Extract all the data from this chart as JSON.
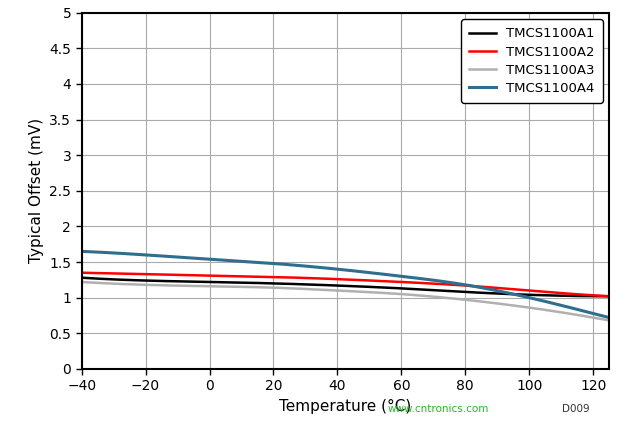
{
  "title": "",
  "xlabel": "Temperature (°C)",
  "ylabel": "Typical Offset (mV)",
  "xlim": [
    -40,
    125
  ],
  "ylim": [
    0,
    5
  ],
  "xticks": [
    -40,
    -20,
    0,
    20,
    40,
    60,
    80,
    100,
    120
  ],
  "ytick_values": [
    0,
    0.5,
    1.0,
    1.5,
    2.0,
    2.5,
    3.0,
    3.5,
    4.0,
    4.5,
    5.0
  ],
  "ytick_labels": [
    "0",
    "0.5",
    "1",
    "1.5",
    "2",
    "2.5",
    "3",
    "3.5",
    "4",
    "4.5",
    "5"
  ],
  "series": [
    {
      "label": "TMCS1100A1",
      "color": "#000000",
      "linewidth": 1.8,
      "x": [
        -40,
        -20,
        0,
        20,
        40,
        60,
        80,
        100,
        125
      ],
      "y": [
        1.28,
        1.24,
        1.22,
        1.2,
        1.17,
        1.13,
        1.08,
        1.04,
        1.02
      ]
    },
    {
      "label": "TMCS1100A2",
      "color": "#ff0000",
      "linewidth": 1.8,
      "x": [
        -40,
        -20,
        0,
        20,
        40,
        60,
        80,
        100,
        125
      ],
      "y": [
        1.35,
        1.33,
        1.31,
        1.29,
        1.26,
        1.22,
        1.17,
        1.1,
        1.02
      ]
    },
    {
      "label": "TMCS1100A3",
      "color": "#b0b0b0",
      "linewidth": 1.8,
      "x": [
        -40,
        -20,
        0,
        20,
        40,
        60,
        80,
        100,
        125
      ],
      "y": [
        1.22,
        1.18,
        1.16,
        1.14,
        1.1,
        1.05,
        0.97,
        0.86,
        0.68
      ]
    },
    {
      "label": "TMCS1100A4",
      "color": "#2e6e8e",
      "linewidth": 2.2,
      "x": [
        -40,
        -20,
        0,
        20,
        40,
        60,
        80,
        100,
        125
      ],
      "y": [
        1.65,
        1.6,
        1.54,
        1.48,
        1.4,
        1.3,
        1.18,
        1.0,
        0.72
      ]
    }
  ],
  "legend_loc": "upper right",
  "grid_color": "#aaaaaa",
  "background_color": "#ffffff",
  "watermark": "www.cntronics.com",
  "watermark_color": "#22bb22",
  "figure_id": "D009",
  "figure_id_color": "#333333"
}
